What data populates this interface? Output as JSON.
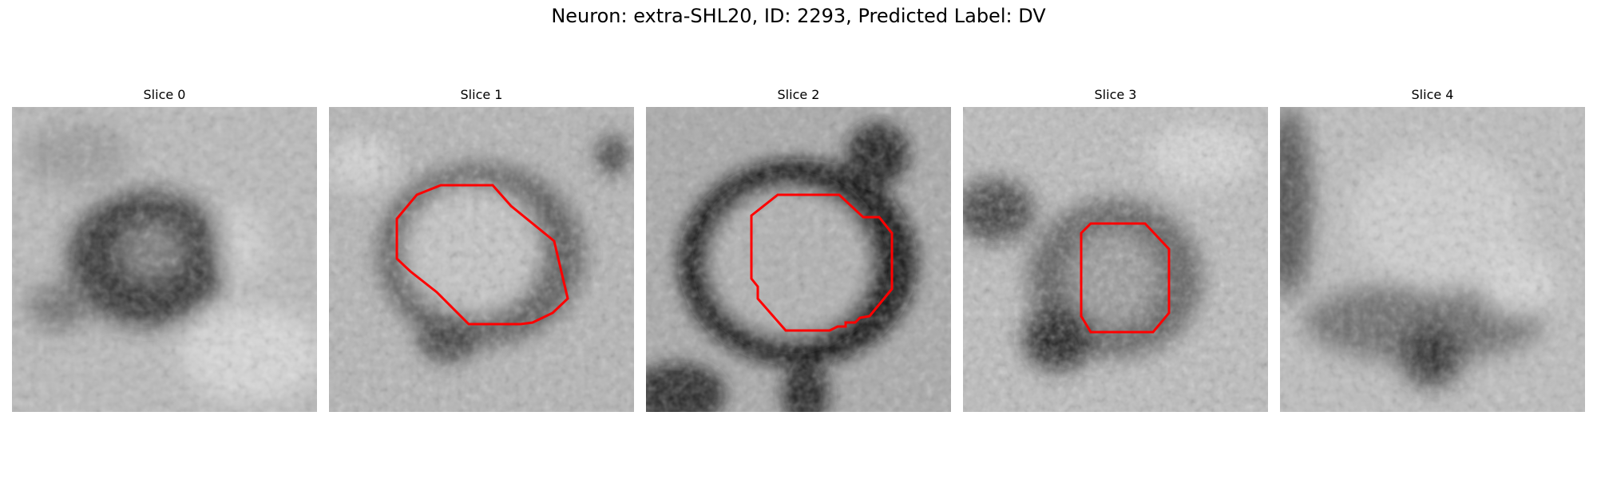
{
  "figure_title": "Neuron: extra-SHL20, ID: 2293, Predicted Label: DV",
  "contour_color": "#ff0000",
  "panels": [
    {
      "title": "Slice 0",
      "has_contour": false
    },
    {
      "title": "Slice 1",
      "has_contour": true
    },
    {
      "title": "Slice 2",
      "has_contour": true
    },
    {
      "title": "Slice 3",
      "has_contour": true
    },
    {
      "title": "Slice 4",
      "has_contour": false
    }
  ]
}
